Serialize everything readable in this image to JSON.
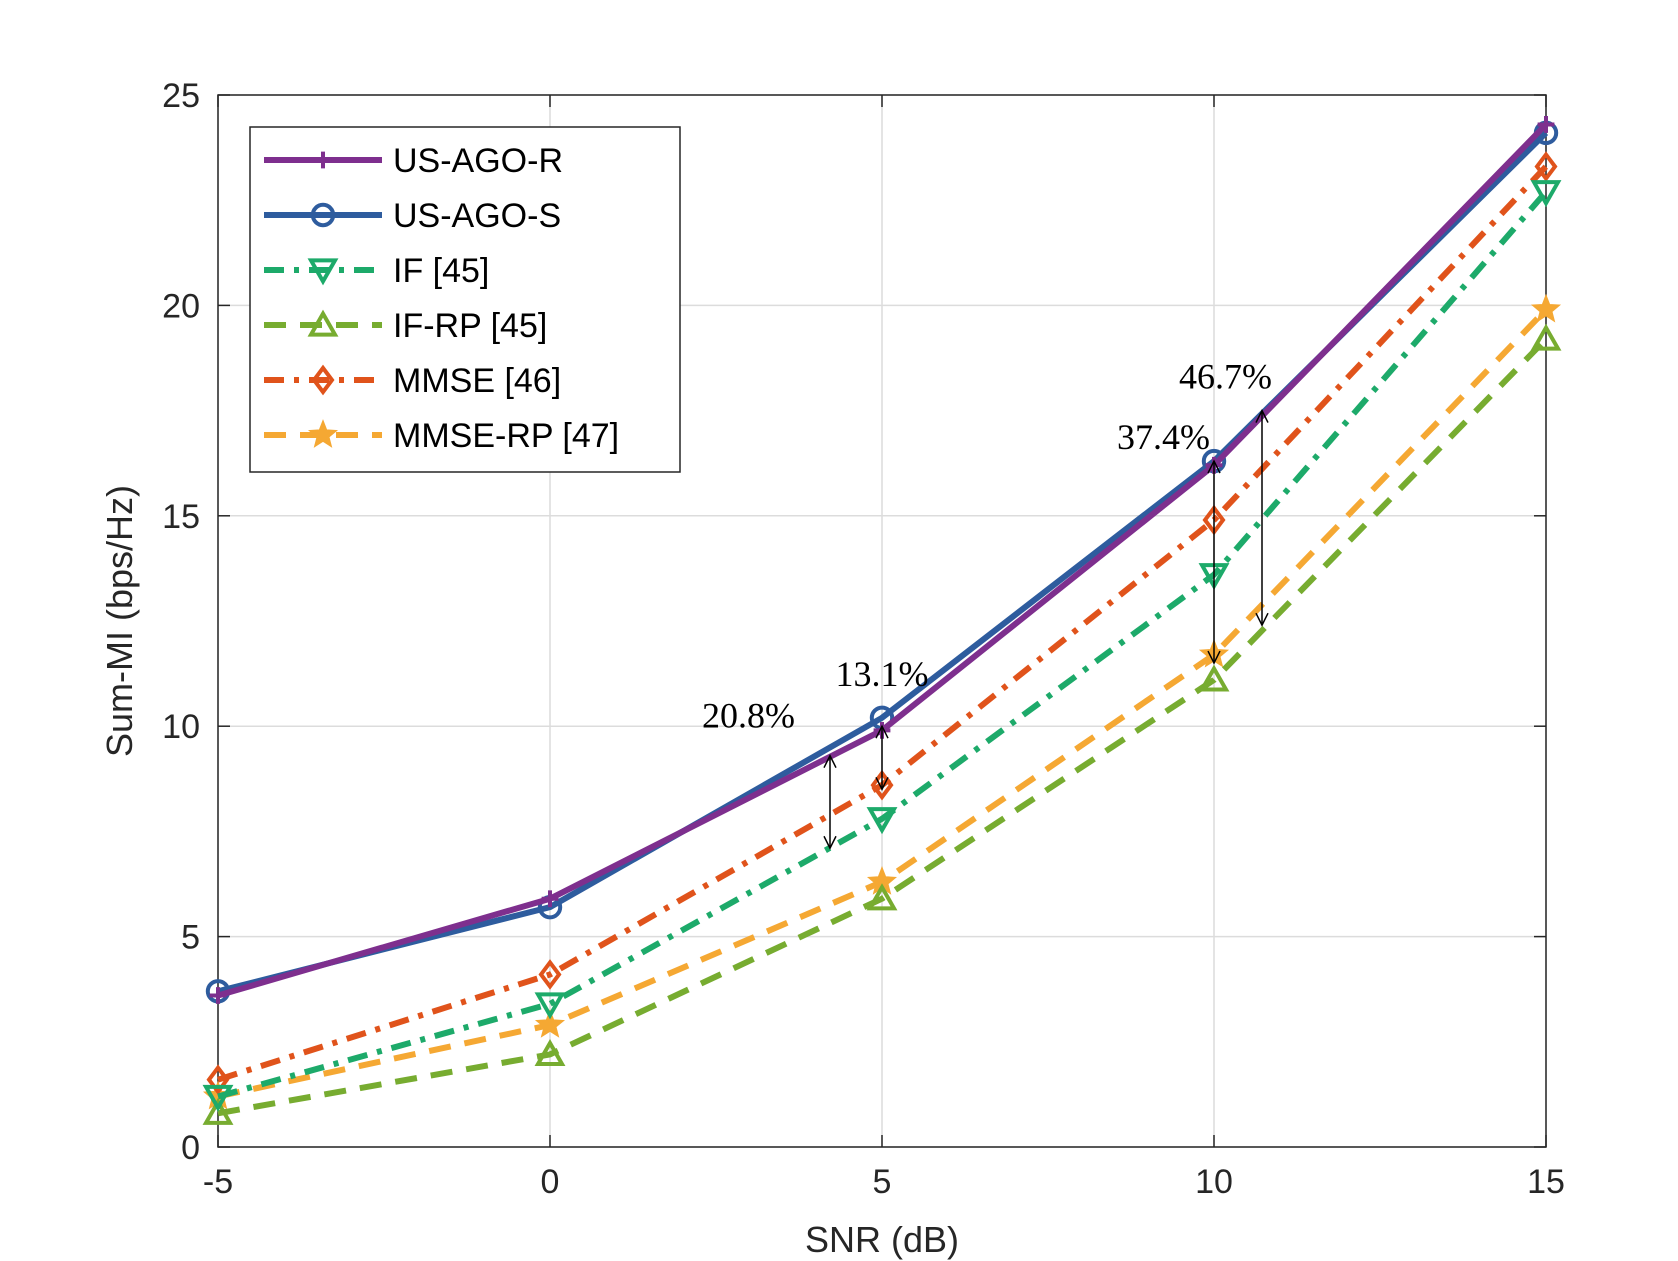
{
  "chart_data": {
    "type": "line",
    "title": "",
    "xlabel": "SNR (dB)",
    "ylabel": "Sum-MI (bps/Hz)",
    "xlim": [
      -5,
      15
    ],
    "ylim": [
      0,
      25
    ],
    "xticks": [
      -5,
      0,
      5,
      10,
      15
    ],
    "yticks": [
      0,
      5,
      10,
      15,
      20,
      25
    ],
    "x": [
      -5,
      0,
      5,
      10,
      15
    ],
    "grid": true,
    "legend_position": "top-left",
    "series": [
      {
        "name": "US-AGO-R",
        "values": [
          3.6,
          5.9,
          9.9,
          16.2,
          24.3
        ],
        "color": "#7E2F8E",
        "line": "solid",
        "marker": "plus"
      },
      {
        "name": "US-AGO-S",
        "values": [
          3.7,
          5.7,
          10.2,
          16.3,
          24.1
        ],
        "color": "#2E5C9E",
        "line": "solid",
        "marker": "circle"
      },
      {
        "name": "IF [45]",
        "values": [
          1.2,
          3.4,
          7.8,
          13.6,
          22.7
        ],
        "color": "#1DAA6A",
        "line": "dashdot",
        "marker": "triangle-down"
      },
      {
        "name": "IF-RP [45]",
        "values": [
          0.8,
          2.2,
          5.9,
          11.1,
          19.2
        ],
        "color": "#77AC30",
        "line": "dashed",
        "marker": "triangle-up"
      },
      {
        "name": "MMSE [46]",
        "values": [
          1.6,
          4.1,
          8.6,
          14.9,
          23.3
        ],
        "color": "#E0531B",
        "line": "dashdot",
        "marker": "diamond"
      },
      {
        "name": "MMSE-RP [47]",
        "values": [
          1.2,
          2.9,
          6.3,
          11.7,
          19.9
        ],
        "color": "#F5A833",
        "line": "dashed",
        "marker": "star"
      }
    ],
    "annotations": [
      {
        "text": "20.8%",
        "x": 5,
        "arrow_from": 9.3,
        "arrow_to": 7.1
      },
      {
        "text": "13.1%",
        "x": 5,
        "arrow_from": 10.0,
        "arrow_to": 8.5
      },
      {
        "text": "37.4%",
        "x": 10,
        "arrow_from": 16.3,
        "arrow_to": 11.5
      },
      {
        "text": "46.7%",
        "x": 10,
        "arrow_from": 17.5,
        "arrow_to": 12.4
      }
    ]
  }
}
